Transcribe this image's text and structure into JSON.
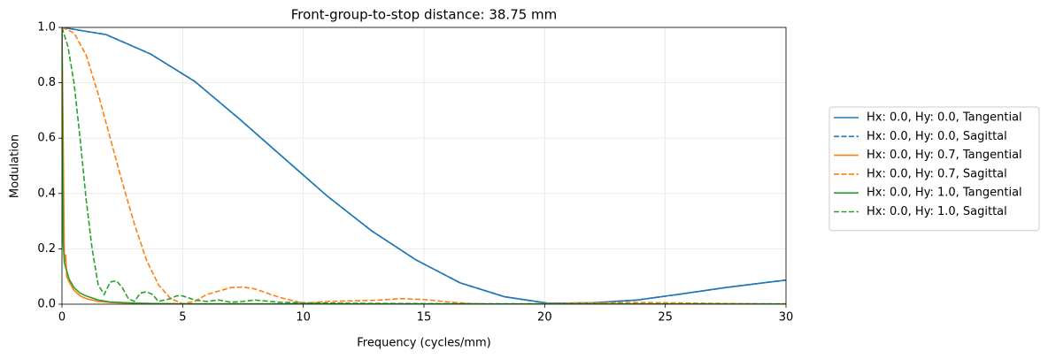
{
  "chart_data": {
    "type": "line",
    "title": "Front-group-to-stop distance: 38.75 mm",
    "x_label": "Frequency (cycles/mm)",
    "y_label": "Modulation",
    "xlim": [
      0,
      30
    ],
    "ylim": [
      0,
      1.0
    ],
    "xticks": [
      0,
      5,
      10,
      15,
      20,
      25,
      30
    ],
    "yticks": [
      {
        "value": 0,
        "label": "0.0"
      },
      0.2,
      0.4,
      0.6,
      0.8,
      {
        "value": 1.0,
        "label": "1.0"
      }
    ],
    "grid": true,
    "legend": "right",
    "series": [
      {
        "name": "Hx: 0.0, Hy: 0.0, Tangential",
        "color": "#1f77b4",
        "linestyle": "solid",
        "x": [
          0,
          1.83,
          3.67,
          5.5,
          7.33,
          9.17,
          11,
          12.83,
          14.67,
          16.5,
          18.33,
          20.17,
          22,
          23.83,
          25.67,
          27.5,
          29.33,
          30
        ],
        "values": [
          1.0,
          0.974,
          0.904,
          0.805,
          0.671,
          0.53,
          0.39,
          0.265,
          0.16,
          0.077,
          0.027,
          0.003,
          0.005,
          0.015,
          0.037,
          0.06,
          0.08,
          0.087
        ]
      },
      {
        "name": "Hx: 0.0, Hy: 0.0, Sagittal",
        "color": "#1f77b4",
        "linestyle": "dashed",
        "x": [
          0,
          1.83,
          3.67,
          5.5,
          7.33,
          9.17,
          11,
          12.83,
          14.67,
          16.5,
          18.33,
          20.17,
          22,
          23.83,
          25.67,
          27.5,
          29.33,
          30
        ],
        "values": [
          1.0,
          0.974,
          0.904,
          0.805,
          0.671,
          0.53,
          0.39,
          0.265,
          0.16,
          0.077,
          0.027,
          0.003,
          0.005,
          0.015,
          0.037,
          0.06,
          0.08,
          0.087
        ]
      },
      {
        "name": "Hx: 0.0, Hy: 0.7, Tangential",
        "color": "#ff7f0e",
        "linestyle": "solid",
        "x": [
          0,
          0.05,
          0.1,
          0.15,
          0.2,
          0.3,
          0.5,
          0.75,
          1,
          1.5,
          2,
          3,
          5,
          30
        ],
        "values": [
          1.0,
          0.6,
          0.15,
          0.18,
          0.1,
          0.08,
          0.05,
          0.03,
          0.02,
          0.01,
          0.006,
          0.003,
          0.001,
          0
        ]
      },
      {
        "name": "Hx: 0.0, Hy: 0.7, Sagittal",
        "color": "#ff7f0e",
        "linestyle": "dashed",
        "x": [
          0,
          0.5,
          1,
          1.5,
          2,
          2.5,
          3,
          3.5,
          4,
          4.5,
          5,
          5.5,
          6,
          7,
          7.5,
          8,
          9,
          10,
          11,
          12,
          13,
          14,
          15,
          16,
          17,
          18,
          20,
          22,
          24,
          26,
          28,
          30
        ],
        "values": [
          1.0,
          0.98,
          0.9,
          0.76,
          0.6,
          0.44,
          0.29,
          0.16,
          0.07,
          0.02,
          0.002,
          0.01,
          0.035,
          0.06,
          0.062,
          0.055,
          0.025,
          0.003,
          0.01,
          0.012,
          0.014,
          0.02,
          0.017,
          0.008,
          0.002,
          0,
          0.002,
          0.005,
          0.006,
          0.004,
          0.002,
          0.001
        ]
      },
      {
        "name": "Hx: 0.0, Hy: 1.0, Tangential",
        "color": "#2ca02c",
        "linestyle": "solid",
        "x": [
          0,
          0.05,
          0.1,
          0.2,
          0.3,
          0.5,
          0.75,
          1,
          1.5,
          2,
          3,
          4,
          5,
          10,
          30
        ],
        "values": [
          1.0,
          0.22,
          0.15,
          0.12,
          0.09,
          0.06,
          0.04,
          0.03,
          0.015,
          0.008,
          0.004,
          0.002,
          0.001,
          0.001,
          0
        ]
      },
      {
        "name": "Hx: 0.0, Hy: 1.0, Sagittal",
        "color": "#2ca02c",
        "linestyle": "dashed",
        "x": [
          0,
          0.25,
          0.5,
          0.75,
          1,
          1.25,
          1.5,
          1.75,
          2,
          2.25,
          2.5,
          2.75,
          3,
          3.25,
          3.5,
          3.75,
          4,
          4.5,
          4.75,
          5,
          5.5,
          6,
          6.5,
          7,
          7.5,
          8,
          9,
          10,
          12,
          15,
          20,
          25,
          30
        ],
        "values": [
          1.0,
          0.93,
          0.8,
          0.6,
          0.38,
          0.2,
          0.07,
          0.035,
          0.08,
          0.085,
          0.06,
          0.02,
          0.01,
          0.04,
          0.045,
          0.035,
          0.01,
          0.02,
          0.03,
          0.03,
          0.015,
          0.01,
          0.015,
          0.007,
          0.01,
          0.015,
          0.007,
          0.005,
          0.003,
          0.002,
          0.001,
          0.001,
          0.001
        ]
      }
    ]
  }
}
